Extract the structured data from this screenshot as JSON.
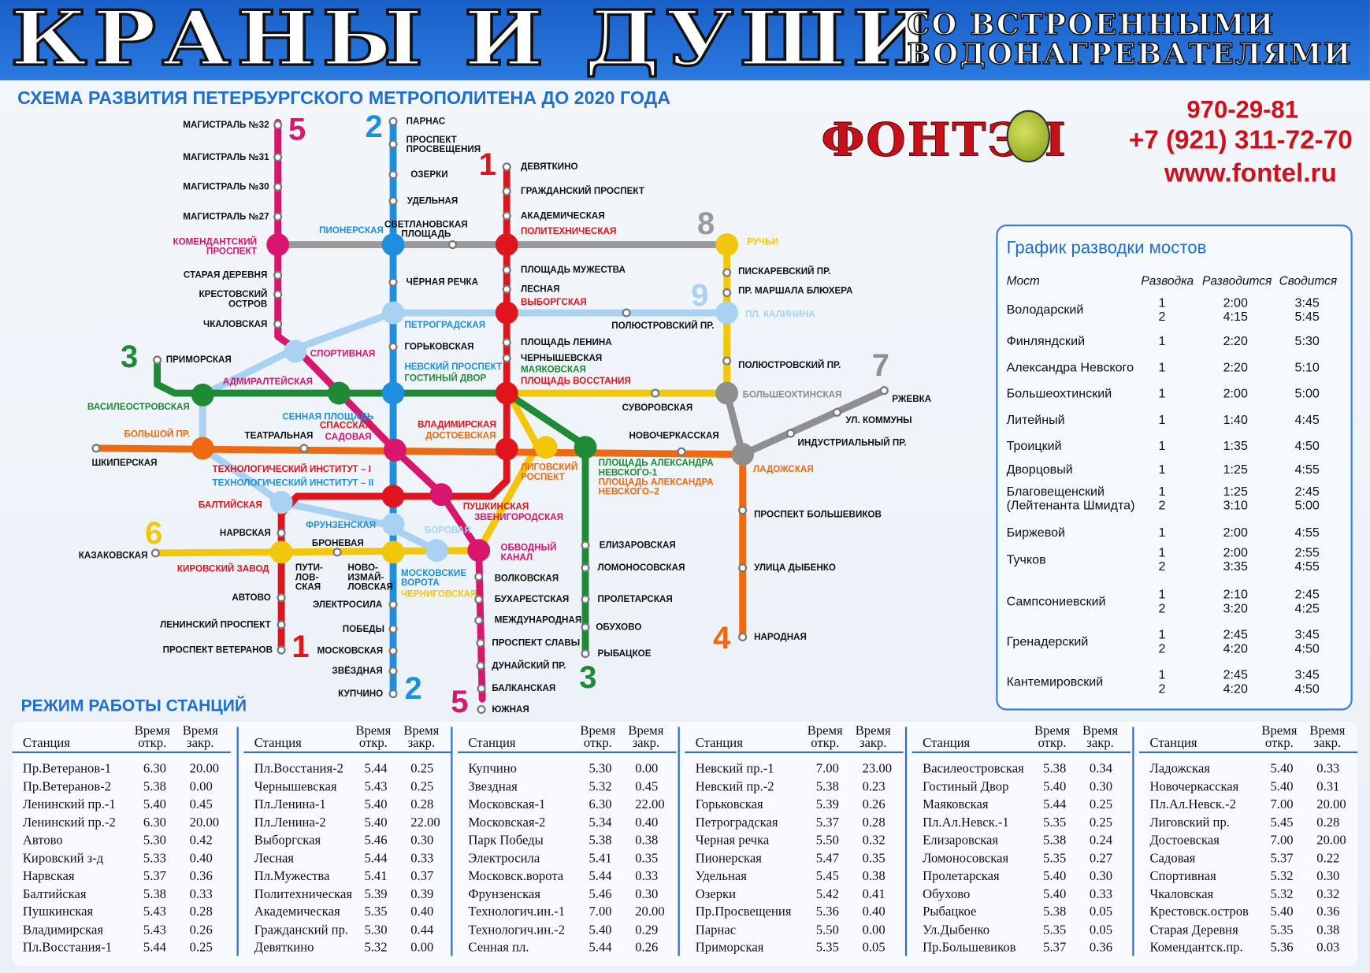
{
  "banner": {
    "title": "КРАНЫ И ДУШИ",
    "subtitle_1": "СО ВСТРОЕННЫМИ",
    "subtitle_2": "ВОДОНАГРЕВАТЕЛЯМИ"
  },
  "scheme_title": "СХЕМА РАЗВИТИЯ ПЕТЕРБУРГСКОГО МЕТРОПОЛИТЕНА ДО 2020 ГОДА",
  "company": {
    "logo": "ФОНТЭЛ",
    "phone_1": "970-29-81",
    "phone_2": "+7 (921) 311-72-70",
    "website": "www.fontel.ru"
  },
  "colors": {
    "line_1": "#e0141c",
    "line_2": "#1e8fe0",
    "line_3": "#1f8a35",
    "line_4": "#ee6a12",
    "line_5": "#d8166e",
    "line_6": "#f2c60a",
    "line_7": "#8f8f8f",
    "line_8": "#9a9a9a",
    "line_9": "#a9d1f2",
    "accent": "#1f6fd0"
  },
  "map": {
    "line_numbers": [
      "5",
      "2",
      "1",
      "8",
      "9",
      "7",
      "3",
      "6",
      "1",
      "2",
      "5",
      "3",
      "4"
    ],
    "stations": [
      "МАГИСТРАЛЬ №32",
      "МАГИСТРАЛЬ №31",
      "МАГИСТРАЛЬ №30",
      "МАГИСТРАЛЬ №27",
      "КОМЕНДАНТСКИЙ\nПРОСПЕКТ",
      "СТАРАЯ ДЕРЕВНЯ",
      "КРЕСТОВСКИЙ\nОСТРОВ",
      "ЧКАЛОВСКАЯ",
      "СПОРТИВНАЯ",
      "АДМИРАЛТЕЙСКАЯ",
      "СПАССКАЯ",
      "САДОВАЯ",
      "ЗВЕНИГОРОДСКАЯ",
      "ОБВОДНЫЙ\nКАНАЛ",
      "ВОЛКОВСКАЯ",
      "БУХАРЕСТСКАЯ",
      "МЕЖДУНАРОДНАЯ",
      "ПРОСПЕКТ СЛАВЫ",
      "ДУНАЙСКИЙ ПР.",
      "БАЛКАНСКАЯ",
      "ЮЖНАЯ",
      "ПАРНАС",
      "ПРОСПЕКТ\nПРОСВЕЩЕНИЯ",
      "ОЗЕРКИ",
      "УДЕЛЬНАЯ",
      "ПИОНЕРСКАЯ",
      "ЧЁРНАЯ РЕЧКА",
      "ПЕТРОГРАДСКАЯ",
      "ГОРЬКОВСКАЯ",
      "НЕВСКИЙ ПРОСПЕКТ",
      "ГОСТИНЫЙ ДВОР",
      "СЕННАЯ ПЛОЩАДЬ",
      "ТЕХНОЛОГИЧЕСКИЙ ИНСТИТУТ – I",
      "ТЕХНОЛОГИЧЕСКИЙ ИНСТИТУТ – II",
      "ФРУНЗЕНСКАЯ",
      "МОСКОВСКИЕ\nВОРОТА",
      "ЧЕРНИГОВСКАЯ",
      "ЭЛЕКТРОСИЛА",
      "ПОБЕДЫ",
      "МОСКОВСКАЯ",
      "ЗВЁЗДНАЯ",
      "КУПЧИНО",
      "ДЕВЯТКИНО",
      "ГРАЖДАНСКИЙ ПРОСПЕКТ",
      "АКАДЕМИЧЕСКАЯ",
      "ПОЛИТЕХНИЧЕСКАЯ",
      "ПЛОЩАДЬ МУЖЕСТВА",
      "ЛЕСНАЯ",
      "ВЫБОРГСКАЯ",
      "ПЛОЩАДЬ ЛЕНИНА",
      "ЧЕРНЫШЕВСКАЯ",
      "МАЯКОВСКАЯ",
      "ПЛОЩАДЬ ВОССТАНИЯ",
      "ВЛАДИМИРСКАЯ",
      "ДОСТОЕВСКАЯ",
      "ПУШКИНСКАЯ",
      "БАЛТИЙСКАЯ",
      "НАРВСКАЯ",
      "КИРОВСКИЙ ЗАВОД",
      "АВТОВО",
      "ЛЕНИНСКИЙ ПРОСПЕКТ",
      "ПРОСПЕКТ ВЕТЕРАНОВ",
      "ПРИМОРСКАЯ",
      "ВАСИЛЕОСТРОВСКАЯ",
      "ПЛОЩАДЬ АЛЕКСАНДРА\nНЕВСКОГО-1",
      "ПЛОЩАДЬ АЛЕКСАНДРА\nНЕВСКОГО–2",
      "ЕЛИЗАРОВСКАЯ",
      "ЛОМОНОСОВСКАЯ",
      "ПРОЛЕТАРСКАЯ",
      "ОБУХОВО",
      "РЫБАЦКОЕ",
      "ШКИПЕРСКАЯ",
      "БОЛЬШОЙ ПР.",
      "ТЕАТРАЛЬНАЯ",
      "ЛИГОВСКИЙ\nРОСПЕКТ",
      "НОВОЧЕРКАССКАЯ",
      "ЛАДОЖСКАЯ",
      "ПРОСПЕКТ БОЛЬШЕВИКОВ",
      "УЛИЦА ДЫБЕНКО",
      "НАРОДНАЯ",
      "КАЗАКОВСКАЯ",
      "БРОНЕВАЯ",
      "ПУТИ-\nЛОВ-\nСКАЯ",
      "НОВО-\nИЗМАЙ-\nЛОВСКАЯ",
      "СУВОРОВСКАЯ",
      "БОЛЬШЕОХТИНСКАЯ",
      "ПОЛЮСТРОВСКИЙ ПР.",
      "ПР. МАРШАЛА БЛЮХЕРА",
      "ПИСКАРЕВСКИЙ ПР.",
      "РУЧЬИ",
      "РЖЕВКА",
      "УЛ. КОММУНЫ",
      "ИНДУСТРИАЛЬНЫЙ ПР.",
      "СВЕТЛАНОВСКАЯ\nПЛОЩАДЬ",
      "ПЛ. КАЛИНИНА",
      "ПОЛЮСТРОВСКИЙ ПР.",
      "БОРОВАЯ"
    ]
  },
  "bridges": {
    "title": "График разводки мостов",
    "headers": [
      "Мост",
      "Разводка",
      "Разводится",
      "Сводится"
    ],
    "rows": [
      {
        "name": "Володарский",
        "n": "1\n2",
        "open": "2:00\n4:15",
        "close": "3:45\n5:45"
      },
      {
        "name": "Финляндский",
        "n": "1",
        "open": "2:20",
        "close": "5:30"
      },
      {
        "name": "Александра Невского",
        "n": "1",
        "open": "2:20",
        "close": "5:10"
      },
      {
        "name": "Большеохтинский",
        "n": "1",
        "open": "2:00",
        "close": "5:00"
      },
      {
        "name": "Литейный",
        "n": "1",
        "open": "1:40",
        "close": "4:45"
      },
      {
        "name": "Троицкий",
        "n": "1",
        "open": "1:35",
        "close": "4:50"
      },
      {
        "name": "Дворцовый",
        "n": "1",
        "open": "1:25",
        "close": "4:55"
      },
      {
        "name": "Благовещенский\n(Лейтенанта Шмидта)",
        "n": "1\n2",
        "open": "1:25\n3:10",
        "close": "2:45\n5:00"
      },
      {
        "name": "Биржевой",
        "n": "1",
        "open": "2:00",
        "close": "4:55"
      },
      {
        "name": "Тучков",
        "n": "1\n2",
        "open": "2:00\n3:35",
        "close": "2:55\n4:55"
      },
      {
        "name": "Сампсониевский",
        "n": "1\n2",
        "open": "2:10\n3:20",
        "close": "2:45\n4:25"
      },
      {
        "name": "Гренадерский",
        "n": "1\n2",
        "open": "2:45\n4:20",
        "close": "3:45\n4:50"
      },
      {
        "name": "Кантемировский",
        "n": "1\n2",
        "open": "2:45\n4:20",
        "close": "3:45\n4:50"
      }
    ]
  },
  "hours": {
    "title": "РЕЖИМ РАБОТЫ СТАНЦИЙ",
    "headers": {
      "station": "Станция",
      "open": "Время\nоткр.",
      "close": "Время\nзакр."
    },
    "columns": [
      [
        [
          "Пр.Ветеранов-1",
          "6.30",
          "20.00"
        ],
        [
          "Пр.Ветеранов-2",
          "5.38",
          "0.00"
        ],
        [
          "Ленинский пр.-1",
          "5.40",
          "0.45"
        ],
        [
          "Ленинский пр.-2",
          "6.30",
          "20.00"
        ],
        [
          "Автово",
          "5.30",
          "0.42"
        ],
        [
          "Кировский з-д",
          "5.33",
          "0.40"
        ],
        [
          "Нарвская",
          "5.37",
          "0.36"
        ],
        [
          "Балтийская",
          "5.38",
          "0.33"
        ],
        [
          "Пушкинская",
          "5.43",
          "0.28"
        ],
        [
          "Владимирская",
          "5.43",
          "0.26"
        ],
        [
          "Пл.Восстания-1",
          "5.44",
          "0.25"
        ]
      ],
      [
        [
          "Пл.Восстания-2",
          "5.44",
          "0.25"
        ],
        [
          "Чернышевская",
          "5.43",
          "0.25"
        ],
        [
          "Пл.Ленина-1",
          "5.40",
          "0.28"
        ],
        [
          "Пл.Ленина-2",
          "5.40",
          "22.00"
        ],
        [
          "Выборгская",
          "5.46",
          "0.30"
        ],
        [
          "Лесная",
          "5.44",
          "0.33"
        ],
        [
          "Пл.Мужества",
          "5.41",
          "0.37"
        ],
        [
          "Политехническая",
          "5.39",
          "0.39"
        ],
        [
          "Академическая",
          "5.35",
          "0.40"
        ],
        [
          "Гражданский пр.",
          "5.30",
          "0.44"
        ],
        [
          "Девяткино",
          "5.32",
          "0.00"
        ]
      ],
      [
        [
          "Купчино",
          "5.30",
          "0.00"
        ],
        [
          "Звездная",
          "5.32",
          "0.45"
        ],
        [
          "Московская-1",
          "6.30",
          "22.00"
        ],
        [
          "Московская-2",
          "5.34",
          "0.40"
        ],
        [
          "Парк Победы",
          "5.38",
          "0.38"
        ],
        [
          "Электросила",
          "5.41",
          "0.35"
        ],
        [
          "Московск.ворота",
          "5.44",
          "0.33"
        ],
        [
          "Фрунзенская",
          "5.46",
          "0.30"
        ],
        [
          "Технологич.ин.-1",
          "7.00",
          "20.00"
        ],
        [
          "Технологич.ин.-2",
          "5.40",
          "0.29"
        ],
        [
          "Сенная пл.",
          "5.44",
          "0.26"
        ]
      ],
      [
        [
          "Невский пр.-1",
          "7.00",
          "23.00"
        ],
        [
          "Невский пр.-2",
          "5.38",
          "0.23"
        ],
        [
          "Горьковская",
          "5.39",
          "0.26"
        ],
        [
          "Петроградская",
          "5.37",
          "0.28"
        ],
        [
          "Черная речка",
          "5.50",
          "0.32"
        ],
        [
          "Пионерская",
          "5.47",
          "0.35"
        ],
        [
          "Удельная",
          "5.45",
          "0.38"
        ],
        [
          "Озерки",
          "5.42",
          "0.41"
        ],
        [
          "Пр.Просвещения",
          "5.36",
          "0.40"
        ],
        [
          "Парнас",
          "5.50",
          "0.00"
        ],
        [
          "Приморская",
          "5.35",
          "0.05"
        ]
      ],
      [
        [
          "Василеостровская",
          "5.38",
          "0.34"
        ],
        [
          "Гостиный Двор",
          "5.40",
          "0.30"
        ],
        [
          "Маяковская",
          "5.44",
          "0.25"
        ],
        [
          "Пл.Ал.Невск.-1",
          "5.35",
          "0.25"
        ],
        [
          "Елизаровская",
          "5.38",
          "0.24"
        ],
        [
          "Ломоносовская",
          "5.35",
          "0.27"
        ],
        [
          "Пролетарская",
          "5.40",
          "0.30"
        ],
        [
          "Обухово",
          "5.40",
          "0.33"
        ],
        [
          "Рыбацкое",
          "5.38",
          "0.05"
        ],
        [
          "Ул.Дыбенко",
          "5.35",
          "0.05"
        ],
        [
          "Пр.Большевиков",
          "5.37",
          "0.36"
        ]
      ],
      [
        [
          "Ладожская",
          "5.40",
          "0.33"
        ],
        [
          "Новочеркасская",
          "5.40",
          "0.31"
        ],
        [
          "Пл.Ал.Невск.-2",
          "7.00",
          "20.00"
        ],
        [
          "Лиговский пр.",
          "5.45",
          "0.28"
        ],
        [
          "Достоевская",
          "7.00",
          "20.00"
        ],
        [
          "Садовая",
          "5.37",
          "0.22"
        ],
        [
          "Спортивная",
          "5.32",
          "0.30"
        ],
        [
          "Чкаловская",
          "5.32",
          "0.32"
        ],
        [
          "Крестовск.остров",
          "5.40",
          "0.36"
        ],
        [
          "Старая Деревня",
          "5.35",
          "0.38"
        ],
        [
          "Комендантск.пр.",
          "5.36",
          "0.03"
        ]
      ]
    ]
  }
}
